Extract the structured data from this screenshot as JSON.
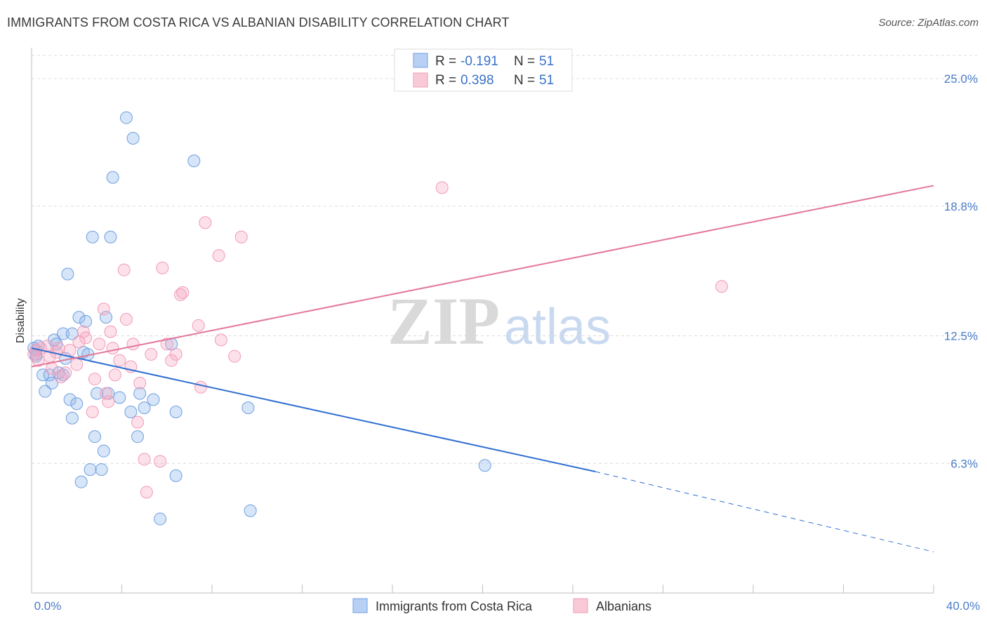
{
  "title": "IMMIGRANTS FROM COSTA RICA VS ALBANIAN DISABILITY CORRELATION CHART",
  "source": "Source: ZipAtlas.com",
  "watermark": {
    "zip": "ZIP",
    "atlas": "atlas"
  },
  "colors": {
    "blue": "#6f9fe0",
    "blue_line": "#2f6fd0",
    "pink": "#f29bb6",
    "pink_line": "#e2779a",
    "tick": "#4a7cc9"
  },
  "legend": {
    "r_label": "R =",
    "n_label": "N =",
    "series": [
      {
        "r": "-0.191",
        "n": "51"
      },
      {
        "r": "0.398",
        "n": "51"
      }
    ]
  },
  "chart_data": {
    "type": "scatter",
    "title": "IMMIGRANTS FROM COSTA RICA VS ALBANIAN DISABILITY CORRELATION CHART",
    "xlabel": "",
    "ylabel": "Disability",
    "xlim": [
      0,
      40
    ],
    "ylim": [
      0,
      26.5
    ],
    "x_tick_labels": [
      "0.0%",
      "40.0%"
    ],
    "y_ticks": [
      6.3,
      12.5,
      18.8,
      25.0
    ],
    "y_tick_labels": [
      "6.3%",
      "12.5%",
      "18.8%",
      "25.0%"
    ],
    "grid": true,
    "legend_position": "top-center",
    "series": [
      {
        "name": "Immigrants from Costa Rica",
        "color": "#6f9fe0",
        "r": -0.191,
        "n": 51,
        "trend": {
          "x0": 0,
          "y0": 11.9,
          "x1": 25,
          "y1": 5.9,
          "dash_to_x": 40,
          "dash_to_y": 2.0
        },
        "points": [
          [
            4.2,
            23.1
          ],
          [
            4.5,
            22.1
          ],
          [
            7.2,
            21.0
          ],
          [
            3.6,
            20.2
          ],
          [
            2.7,
            17.3
          ],
          [
            3.5,
            17.3
          ],
          [
            1.6,
            15.5
          ],
          [
            2.1,
            13.4
          ],
          [
            3.3,
            13.4
          ],
          [
            2.4,
            13.2
          ],
          [
            1.4,
            12.6
          ],
          [
            1.8,
            12.6
          ],
          [
            1.0,
            12.3
          ],
          [
            0.3,
            12.0
          ],
          [
            0.2,
            11.8
          ],
          [
            0.1,
            11.9
          ],
          [
            0.2,
            11.6
          ],
          [
            2.3,
            11.7
          ],
          [
            2.5,
            11.6
          ],
          [
            6.2,
            12.1
          ],
          [
            1.5,
            11.4
          ],
          [
            0.5,
            10.6
          ],
          [
            0.8,
            10.6
          ],
          [
            1.2,
            10.7
          ],
          [
            1.4,
            10.6
          ],
          [
            0.9,
            10.2
          ],
          [
            0.6,
            9.8
          ],
          [
            1.7,
            9.4
          ],
          [
            2.0,
            9.2
          ],
          [
            2.9,
            9.7
          ],
          [
            3.4,
            9.7
          ],
          [
            3.9,
            9.5
          ],
          [
            4.8,
            9.7
          ],
          [
            5.4,
            9.4
          ],
          [
            5.0,
            9.0
          ],
          [
            4.4,
            8.8
          ],
          [
            6.4,
            8.8
          ],
          [
            9.6,
            9.0
          ],
          [
            1.8,
            8.5
          ],
          [
            2.8,
            7.6
          ],
          [
            4.7,
            7.6
          ],
          [
            3.2,
            6.9
          ],
          [
            2.6,
            6.0
          ],
          [
            3.1,
            6.0
          ],
          [
            6.4,
            5.7
          ],
          [
            2.2,
            5.4
          ],
          [
            5.7,
            3.6
          ],
          [
            9.7,
            4.0
          ],
          [
            20.1,
            6.2
          ],
          [
            0.2,
            11.5
          ],
          [
            1.1,
            12.1
          ]
        ]
      },
      {
        "name": "Albanians",
        "color": "#f29bb6",
        "r": 0.398,
        "n": 51,
        "trend": {
          "x0": 0,
          "y0": 11.0,
          "x1": 40,
          "y1": 19.8
        },
        "points": [
          [
            18.2,
            19.7
          ],
          [
            7.7,
            18.0
          ],
          [
            9.3,
            17.3
          ],
          [
            8.3,
            16.4
          ],
          [
            5.8,
            15.8
          ],
          [
            4.1,
            15.7
          ],
          [
            6.6,
            14.5
          ],
          [
            6.7,
            14.6
          ],
          [
            30.6,
            14.9
          ],
          [
            3.2,
            13.8
          ],
          [
            4.2,
            13.3
          ],
          [
            7.4,
            13.0
          ],
          [
            2.3,
            12.7
          ],
          [
            3.5,
            12.7
          ],
          [
            8.4,
            12.3
          ],
          [
            2.4,
            12.4
          ],
          [
            3.0,
            12.1
          ],
          [
            4.5,
            12.1
          ],
          [
            6.0,
            12.1
          ],
          [
            0.7,
            12.0
          ],
          [
            1.2,
            11.9
          ],
          [
            0.4,
            11.9
          ],
          [
            1.7,
            11.8
          ],
          [
            3.6,
            11.9
          ],
          [
            5.3,
            11.6
          ],
          [
            6.4,
            11.6
          ],
          [
            9.0,
            11.5
          ],
          [
            0.1,
            11.6
          ],
          [
            0.3,
            11.3
          ],
          [
            3.9,
            11.3
          ],
          [
            6.2,
            11.3
          ],
          [
            4.4,
            11.0
          ],
          [
            2.0,
            11.1
          ],
          [
            0.9,
            10.9
          ],
          [
            1.5,
            10.7
          ],
          [
            3.7,
            10.6
          ],
          [
            2.8,
            10.4
          ],
          [
            1.3,
            10.5
          ],
          [
            4.8,
            10.2
          ],
          [
            7.5,
            10.0
          ],
          [
            3.3,
            9.7
          ],
          [
            3.4,
            9.3
          ],
          [
            2.7,
            8.8
          ],
          [
            4.7,
            8.3
          ],
          [
            5.0,
            6.5
          ],
          [
            5.7,
            6.4
          ],
          [
            5.1,
            4.9
          ],
          [
            0.8,
            11.5
          ],
          [
            2.1,
            12.2
          ],
          [
            1.1,
            11.7
          ],
          [
            0.2,
            11.8
          ]
        ]
      }
    ]
  }
}
